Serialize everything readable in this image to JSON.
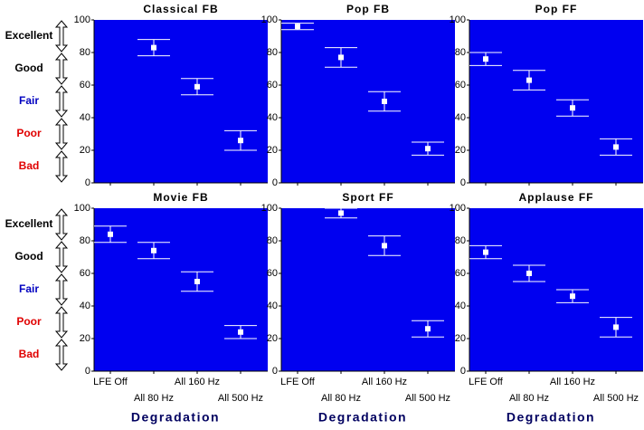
{
  "scale": [
    {
      "label": "Excellent",
      "color": "#000000",
      "range": [
        80,
        100
      ]
    },
    {
      "label": "Good",
      "color": "#000000",
      "range": [
        60,
        80
      ]
    },
    {
      "label": "Fair",
      "color": "#0000c0",
      "range": [
        40,
        60
      ]
    },
    {
      "label": "Poor",
      "color": "#e00000",
      "range": [
        20,
        40
      ]
    },
    {
      "label": "Bad",
      "color": "#e00000",
      "range": [
        0,
        20
      ]
    }
  ],
  "chart_data": [
    {
      "type": "errorbar",
      "title": "Classical FB",
      "categories": [
        null,
        null,
        null,
        null
      ],
      "values": [
        null,
        83,
        59,
        26
      ],
      "errors": [
        null,
        5,
        5,
        6
      ],
      "ylim": [
        0,
        100
      ],
      "yticks": [
        0,
        20,
        40,
        60,
        80,
        100
      ],
      "color": "#ffffff",
      "background": "#0000f0"
    },
    {
      "type": "errorbar",
      "title": "Pop FB",
      "categories": [
        null,
        null,
        null,
        null
      ],
      "values": [
        96,
        77,
        50,
        21
      ],
      "errors": [
        2,
        6,
        6,
        4
      ],
      "ylim": [
        0,
        100
      ],
      "yticks": [
        0,
        20,
        40,
        60,
        80,
        100
      ],
      "color": "#ffffff",
      "background": "#0000f0"
    },
    {
      "type": "errorbar",
      "title": "Pop FF",
      "categories": [
        null,
        null,
        null,
        null
      ],
      "values": [
        76,
        63,
        46,
        22
      ],
      "errors": [
        4,
        6,
        5,
        5
      ],
      "ylim": [
        0,
        100
      ],
      "yticks": [
        0,
        20,
        40,
        60,
        80,
        100
      ],
      "color": "#ffffff",
      "background": "#0000f0"
    },
    {
      "type": "errorbar",
      "title": "Movie FB",
      "categories": [
        "LFE Off",
        "All 80 Hz",
        "All 160 Hz",
        "All 500 Hz"
      ],
      "values": [
        84,
        74,
        55,
        24
      ],
      "errors": [
        5,
        5,
        6,
        4
      ],
      "ylim": [
        0,
        100
      ],
      "yticks": [
        0,
        20,
        40,
        60,
        80,
        100
      ],
      "color": "#ffffff",
      "background": "#0000f0",
      "x_label": "Degradation"
    },
    {
      "type": "errorbar",
      "title": "Sport FF",
      "categories": [
        "LFE Off",
        "All 80 Hz",
        "All 160 Hz",
        "All 500 Hz"
      ],
      "values": [
        null,
        97,
        77,
        26
      ],
      "errors": [
        null,
        3,
        6,
        5
      ],
      "ylim": [
        0,
        100
      ],
      "yticks": [
        0,
        20,
        40,
        60,
        80,
        100
      ],
      "color": "#ffffff",
      "background": "#0000f0",
      "x_label": "Degradation"
    },
    {
      "type": "errorbar",
      "title": "Applause FF",
      "categories": [
        "LFE Off",
        "All 80 Hz",
        "All 160 Hz",
        "All 500 Hz"
      ],
      "values": [
        73,
        60,
        46,
        27
      ],
      "errors": [
        4,
        5,
        4,
        6
      ],
      "ylim": [
        0,
        100
      ],
      "yticks": [
        0,
        20,
        40,
        60,
        80,
        100
      ],
      "color": "#ffffff",
      "background": "#0000f0",
      "x_label": "Degradation"
    }
  ]
}
